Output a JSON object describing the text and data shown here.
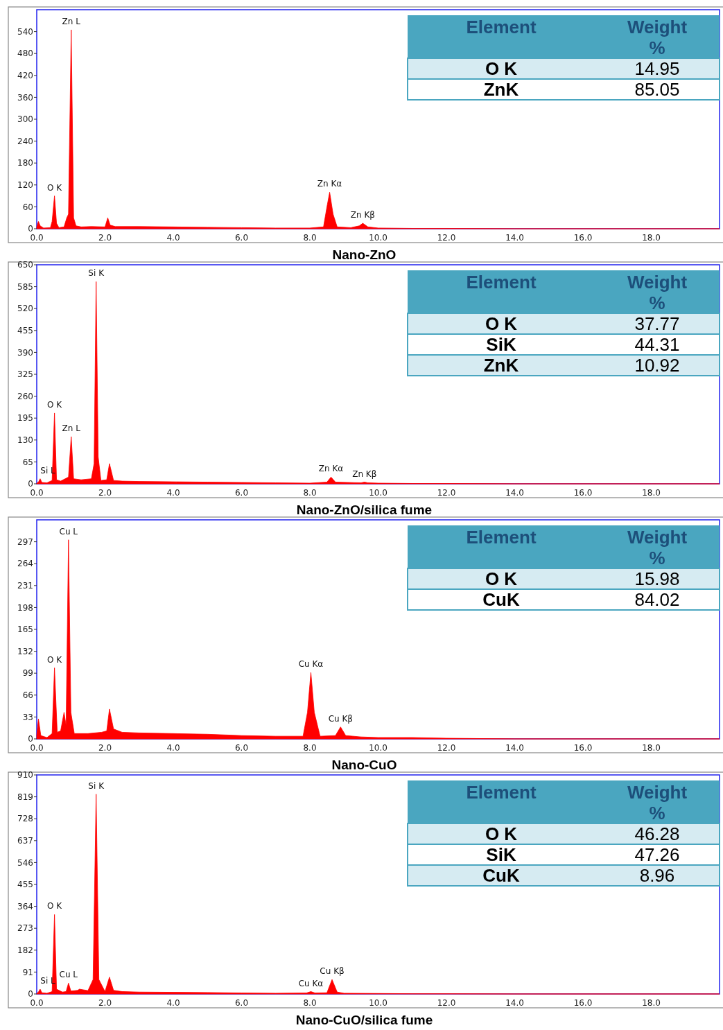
{
  "chart_data": [
    {
      "type": "area",
      "title": "Nano-ZnO",
      "color": "#ff0000",
      "xlim": [
        0,
        20
      ],
      "ylim": [
        0,
        600
      ],
      "xticks": [
        {
          "value": 0,
          "label": "0.0"
        },
        {
          "value": 2,
          "label": "2.0"
        },
        {
          "value": 4,
          "label": "4.0"
        },
        {
          "value": 6,
          "label": "6.0"
        },
        {
          "value": 8,
          "label": "8.0"
        },
        {
          "value": 10,
          "label": "10.0"
        },
        {
          "value": 12,
          "label": "12.0"
        },
        {
          "value": 14,
          "label": "14.0"
        },
        {
          "value": 16,
          "label": "16.0"
        },
        {
          "value": 18,
          "label": "18.0"
        }
      ],
      "yticks": [
        0,
        60,
        120,
        180,
        240,
        300,
        360,
        420,
        480,
        540
      ],
      "x": [
        0,
        0.05,
        0.1,
        0.2,
        0.4,
        0.45,
        0.52,
        0.58,
        0.65,
        0.8,
        0.88,
        0.93,
        1.01,
        1.08,
        1.15,
        1.3,
        1.6,
        2.0,
        2.08,
        2.15,
        2.3,
        3,
        4,
        5,
        6,
        7,
        8,
        8.4,
        8.5,
        8.58,
        8.68,
        8.8,
        9.2,
        9.45,
        9.55,
        9.7,
        10,
        11,
        12,
        14,
        16,
        18,
        20
      ],
      "values": [
        5,
        20,
        8,
        2,
        3,
        20,
        90,
        15,
        3,
        5,
        30,
        40,
        545,
        30,
        8,
        5,
        6,
        5,
        30,
        10,
        6,
        6,
        5,
        4,
        3,
        2,
        2,
        5,
        60,
        100,
        40,
        5,
        3,
        8,
        15,
        5,
        2,
        1,
        1,
        0,
        0,
        0,
        0
      ],
      "annotations": [
        {
          "text": "Zn L",
          "x": 1.01,
          "y": 545
        },
        {
          "text": "O K",
          "x": 0.52,
          "y": 90
        },
        {
          "text": "Zn Kα",
          "x": 8.58,
          "y": 100
        },
        {
          "text": "Zn Kβ",
          "x": 9.55,
          "y": 15
        },
        "Element",
        "Weight %",
        "O K",
        "14.95",
        "ZnK",
        "85.05"
      ]
    },
    {
      "type": "area",
      "title": "Nano-ZnO/silica fume",
      "color": "#ff0000",
      "xlim": [
        0,
        20
      ],
      "ylim": [
        0,
        650
      ],
      "xticks": [
        {
          "value": 0,
          "label": "0.0"
        },
        {
          "value": 2,
          "label": "2.0"
        },
        {
          "value": 4,
          "label": "4.0"
        },
        {
          "value": 6,
          "label": "6.0"
        },
        {
          "value": 8,
          "label": "8.0"
        },
        {
          "value": 10,
          "label": "10.0"
        },
        {
          "value": 12,
          "label": "12.0"
        },
        {
          "value": 14,
          "label": "14.0"
        },
        {
          "value": 16,
          "label": "16.0"
        },
        {
          "value": 18,
          "label": "18.0"
        }
      ],
      "yticks": [
        0,
        65,
        130,
        195,
        260,
        325,
        390,
        455,
        520,
        585,
        650
      ],
      "x": [
        0,
        0.05,
        0.1,
        0.15,
        0.3,
        0.45,
        0.52,
        0.58,
        0.7,
        0.93,
        1.01,
        1.08,
        1.3,
        1.6,
        1.68,
        1.74,
        1.8,
        1.88,
        2.05,
        2.13,
        2.25,
        2.5,
        3,
        4,
        5,
        6,
        7,
        8,
        8.5,
        8.62,
        8.75,
        9.5,
        9.6,
        9.7,
        10,
        11,
        12,
        14,
        16,
        18,
        20
      ],
      "values": [
        2,
        5,
        15,
        4,
        3,
        10,
        210,
        12,
        8,
        20,
        140,
        15,
        12,
        15,
        60,
        600,
        80,
        10,
        12,
        60,
        10,
        8,
        7,
        6,
        5,
        4,
        3,
        2,
        5,
        20,
        5,
        3,
        5,
        3,
        2,
        1,
        1,
        0,
        0,
        0,
        0
      ],
      "annotations": [
        {
          "text": "Si K",
          "x": 1.74,
          "y": 600
        },
        {
          "text": "O K",
          "x": 0.52,
          "y": 210
        },
        {
          "text": "Zn L",
          "x": 1.01,
          "y": 140
        },
        {
          "text": "Si L",
          "x": 0.1,
          "y": 15
        },
        {
          "text": "Zn Kα",
          "x": 8.62,
          "y": 20
        },
        {
          "text": "Zn Kβ",
          "x": 9.6,
          "y": 5
        },
        "Element",
        "Weight %",
        "O K",
        "37.77",
        "SiK",
        "44.31",
        "ZnK",
        "10.92"
      ]
    },
    {
      "type": "area",
      "title": "Nano-CuO",
      "color": "#ff0000",
      "xlim": [
        0,
        20
      ],
      "ylim": [
        0,
        330
      ],
      "xticks": [
        {
          "value": 0,
          "label": "0.0"
        },
        {
          "value": 2,
          "label": "2.0"
        },
        {
          "value": 4,
          "label": "4.0"
        },
        {
          "value": 6,
          "label": "6.0"
        },
        {
          "value": 8,
          "label": "8.0"
        },
        {
          "value": 10,
          "label": "10.0"
        },
        {
          "value": 12,
          "label": "12.0"
        },
        {
          "value": 14,
          "label": "14.0"
        },
        {
          "value": 16,
          "label": "16.0"
        },
        {
          "value": 18,
          "label": "18.0"
        }
      ],
      "yticks": [
        0,
        33,
        66,
        99,
        132,
        165,
        198,
        231,
        264,
        297
      ],
      "x": [
        0,
        0.05,
        0.12,
        0.3,
        0.45,
        0.52,
        0.6,
        0.7,
        0.8,
        0.86,
        0.93,
        1.0,
        1.1,
        1.5,
        1.9,
        2.05,
        2.13,
        2.25,
        2.5,
        3,
        4,
        5,
        6,
        7,
        7.8,
        7.93,
        8.03,
        8.13,
        8.3,
        8.75,
        8.9,
        9.05,
        9.5,
        10,
        11,
        12,
        14,
        16,
        18,
        20
      ],
      "values": [
        5,
        30,
        5,
        2,
        8,
        107,
        10,
        12,
        40,
        20,
        300,
        40,
        8,
        8,
        10,
        12,
        45,
        15,
        10,
        9,
        8,
        7,
        5,
        4,
        4,
        40,
        100,
        40,
        4,
        5,
        18,
        5,
        3,
        2,
        2,
        1,
        0,
        0,
        0,
        0
      ],
      "annotations": [
        {
          "text": "Cu L",
          "x": 0.93,
          "y": 300
        },
        {
          "text": "O K",
          "x": 0.52,
          "y": 107
        },
        {
          "text": "Cu Kα",
          "x": 8.03,
          "y": 100
        },
        {
          "text": "Cu Kβ",
          "x": 8.9,
          "y": 18
        },
        "Element",
        "Weight %",
        "O K",
        "15.98",
        "CuK",
        "84.02"
      ]
    },
    {
      "type": "area",
      "title": "Nano-CuO/silica fume",
      "color": "#ff0000",
      "xlim": [
        0,
        20
      ],
      "ylim": [
        0,
        910
      ],
      "xticks": [
        {
          "value": 0,
          "label": "0.0"
        },
        {
          "value": 2,
          "label": "2.0"
        },
        {
          "value": 4,
          "label": "4.0"
        },
        {
          "value": 6,
          "label": "6.0"
        },
        {
          "value": 8,
          "label": "8.0"
        },
        {
          "value": 10,
          "label": "10.0"
        },
        {
          "value": 12,
          "label": "12.0"
        },
        {
          "value": 14,
          "label": "14.0"
        },
        {
          "value": 16,
          "label": "16.0"
        },
        {
          "value": 18,
          "label": "18.0"
        }
      ],
      "yticks": [
        0,
        91,
        182,
        273,
        364,
        455,
        546,
        637,
        728,
        819,
        910
      ],
      "x": [
        0,
        0.05,
        0.1,
        0.15,
        0.3,
        0.45,
        0.52,
        0.58,
        0.75,
        0.86,
        0.93,
        1.0,
        1.2,
        1.25,
        1.5,
        1.65,
        1.74,
        1.82,
        2.0,
        2.13,
        2.25,
        2.5,
        3,
        4,
        5,
        6,
        7,
        7.9,
        8.03,
        8.15,
        8.5,
        8.65,
        8.8,
        9,
        10,
        11,
        12,
        14,
        16,
        18,
        20
      ],
      "values": [
        2,
        8,
        20,
        5,
        3,
        10,
        330,
        20,
        8,
        10,
        45,
        12,
        15,
        20,
        14,
        60,
        830,
        60,
        10,
        70,
        15,
        10,
        8,
        7,
        6,
        4,
        3,
        4,
        10,
        4,
        5,
        60,
        8,
        3,
        2,
        1,
        1,
        0,
        0,
        0,
        0
      ],
      "annotations": [
        {
          "text": "Si K",
          "x": 1.74,
          "y": 830
        },
        {
          "text": "O K",
          "x": 0.52,
          "y": 330
        },
        {
          "text": "Cu L",
          "x": 0.93,
          "y": 45
        },
        {
          "text": "Si L",
          "x": 0.1,
          "y": 20
        },
        {
          "text": "Cu Kα",
          "x": 8.03,
          "y": 10
        },
        {
          "text": "Cu Kβ",
          "x": 8.65,
          "y": 60
        },
        "Element",
        "Weight %",
        "O K",
        "46.28",
        "SiK",
        "47.26",
        "CuK",
        "8.96"
      ]
    }
  ]
}
